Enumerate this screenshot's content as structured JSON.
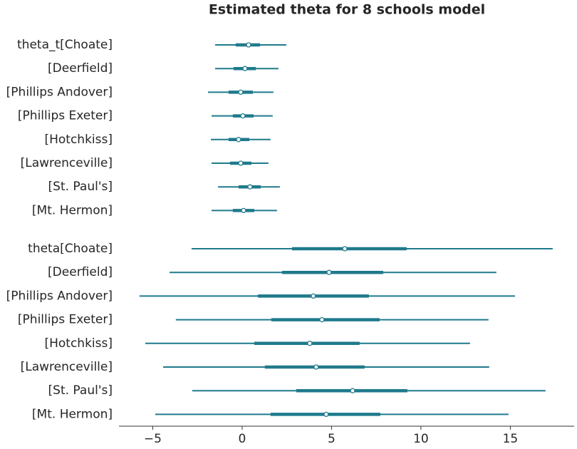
{
  "chart_data": {
    "type": "forest",
    "title": "Estimated theta for 8 schools model",
    "color": "#1f7a8c",
    "xlim": [
      -6.89,
      18.57
    ],
    "xticks": [
      {
        "value": -5,
        "label": "−5"
      },
      0,
      5,
      10,
      15
    ],
    "groups": [
      {
        "categories": [
          "theta_t[Choate]",
          "[Deerfield]",
          "[Phillips Andover]",
          "[Phillips Exeter]",
          "[Hotchkiss]",
          "[Lawrenceville]",
          "[St. Paul's]",
          "[Mt. Hermon]"
        ],
        "hdi_low": [
          -1.51,
          -1.51,
          -1.91,
          -1.71,
          -1.75,
          -1.71,
          -1.35,
          -1.71
        ],
        "iqr_low": [
          -0.36,
          -0.48,
          -0.76,
          -0.52,
          -0.76,
          -0.68,
          -0.2,
          -0.52
        ],
        "median": [
          0.36,
          0.16,
          -0.08,
          0.04,
          -0.2,
          -0.08,
          0.44,
          0.08
        ],
        "iqr_high": [
          1.0,
          0.76,
          0.6,
          0.64,
          0.4,
          0.52,
          1.04,
          0.68
        ],
        "hdi_high": [
          2.47,
          2.03,
          1.75,
          1.71,
          1.59,
          1.47,
          2.11,
          1.95
        ]
      },
      {
        "categories": [
          "theta[Choate]",
          "[Deerfield]",
          "[Phillips Andover]",
          "[Phillips Exeter]",
          "[Hotchkiss]",
          "[Lawrenceville]",
          "[St. Paul's]",
          "[Mt. Hermon]"
        ],
        "hdi_low": [
          -2.83,
          -4.06,
          -5.74,
          -3.71,
          -5.42,
          -4.42,
          -2.79,
          -4.86
        ],
        "iqr_low": [
          2.79,
          2.23,
          0.88,
          1.63,
          0.68,
          1.27,
          3.03,
          1.59
        ],
        "median": [
          5.74,
          4.86,
          3.98,
          4.46,
          3.78,
          4.14,
          6.18,
          4.7
        ],
        "iqr_high": [
          9.2,
          7.89,
          7.09,
          7.69,
          6.57,
          6.85,
          9.24,
          7.73
        ],
        "hdi_high": [
          17.37,
          14.22,
          15.26,
          13.78,
          12.75,
          13.82,
          16.97,
          14.9
        ]
      }
    ]
  }
}
